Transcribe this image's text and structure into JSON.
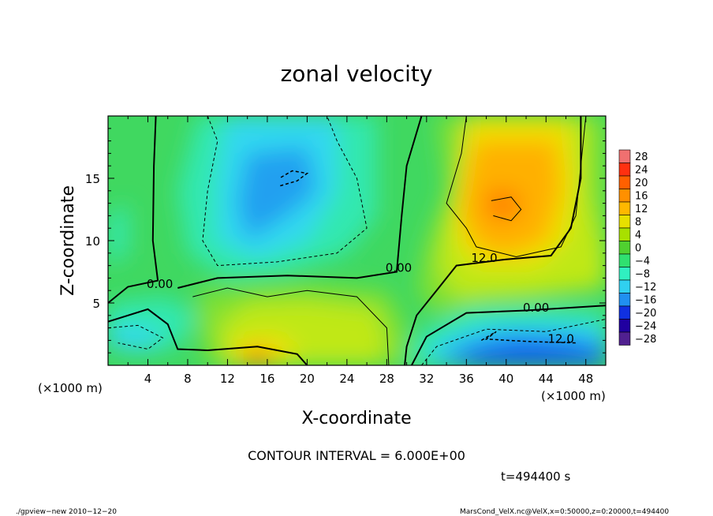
{
  "chart_data": {
    "type": "heatmap",
    "title": "zonal velocity",
    "xlabel": "X-coordinate",
    "ylabel": "Z-coordinate",
    "x_unit": "(×1000 m)",
    "z_unit": "(×1000 m)",
    "xlim": [
      0,
      50
    ],
    "zlim": [
      0,
      20
    ],
    "x_ticks": [
      "4",
      "8",
      "12",
      "16",
      "20",
      "24",
      "28",
      "32",
      "36",
      "40",
      "44",
      "48"
    ],
    "y_ticks": [
      "5",
      "10",
      "15"
    ],
    "contour_interval_text": "CONTOUR INTERVAL = 6.000E+00",
    "time_text": "t=494400 s",
    "contour_labels": [
      {
        "text": "0.00",
        "x": 5.2,
        "z": 6.2
      },
      {
        "text": "0.00",
        "x": 29.2,
        "z": 7.5
      },
      {
        "text": "0.00",
        "x": 43.0,
        "z": 4.3
      },
      {
        "text": "12.0",
        "x": 37.8,
        "z": 8.3
      },
      {
        "text": "12.0",
        "x": 45.5,
        "z": 1.8
      }
    ],
    "colorbar": {
      "labels": [
        "28",
        "24",
        "20",
        "16",
        "12",
        "8",
        "4",
        "0",
        "−4",
        "−8",
        "−12",
        "−16",
        "−20",
        "−24",
        "−28"
      ],
      "colors": [
        "#f07070",
        "#ff3010",
        "#ff6000",
        "#ff9000",
        "#ffb800",
        "#e8e000",
        "#a8e000",
        "#50d030",
        "#30e070",
        "#30f0c0",
        "#30d0f0",
        "#2090f0",
        "#1030e0",
        "#2000a0",
        "#502090"
      ]
    },
    "colors": {
      "c_minus16": "#1050f0",
      "c_minus12": "#20a0f0",
      "c_minus8": "#30d8f0",
      "c_minus4": "#30e8b0",
      "c_0": "#40d860",
      "c_4": "#80e030",
      "c_8": "#c0e818",
      "c_12": "#f0e000",
      "c_16": "#ffb000",
      "c_20": "#ff8000"
    }
  },
  "footer": {
    "left": "./gpview−new 2010−12−20",
    "right": "MarsCond_VelX.nc@VelX,x=0:50000,z=0:20000,t=494400"
  }
}
